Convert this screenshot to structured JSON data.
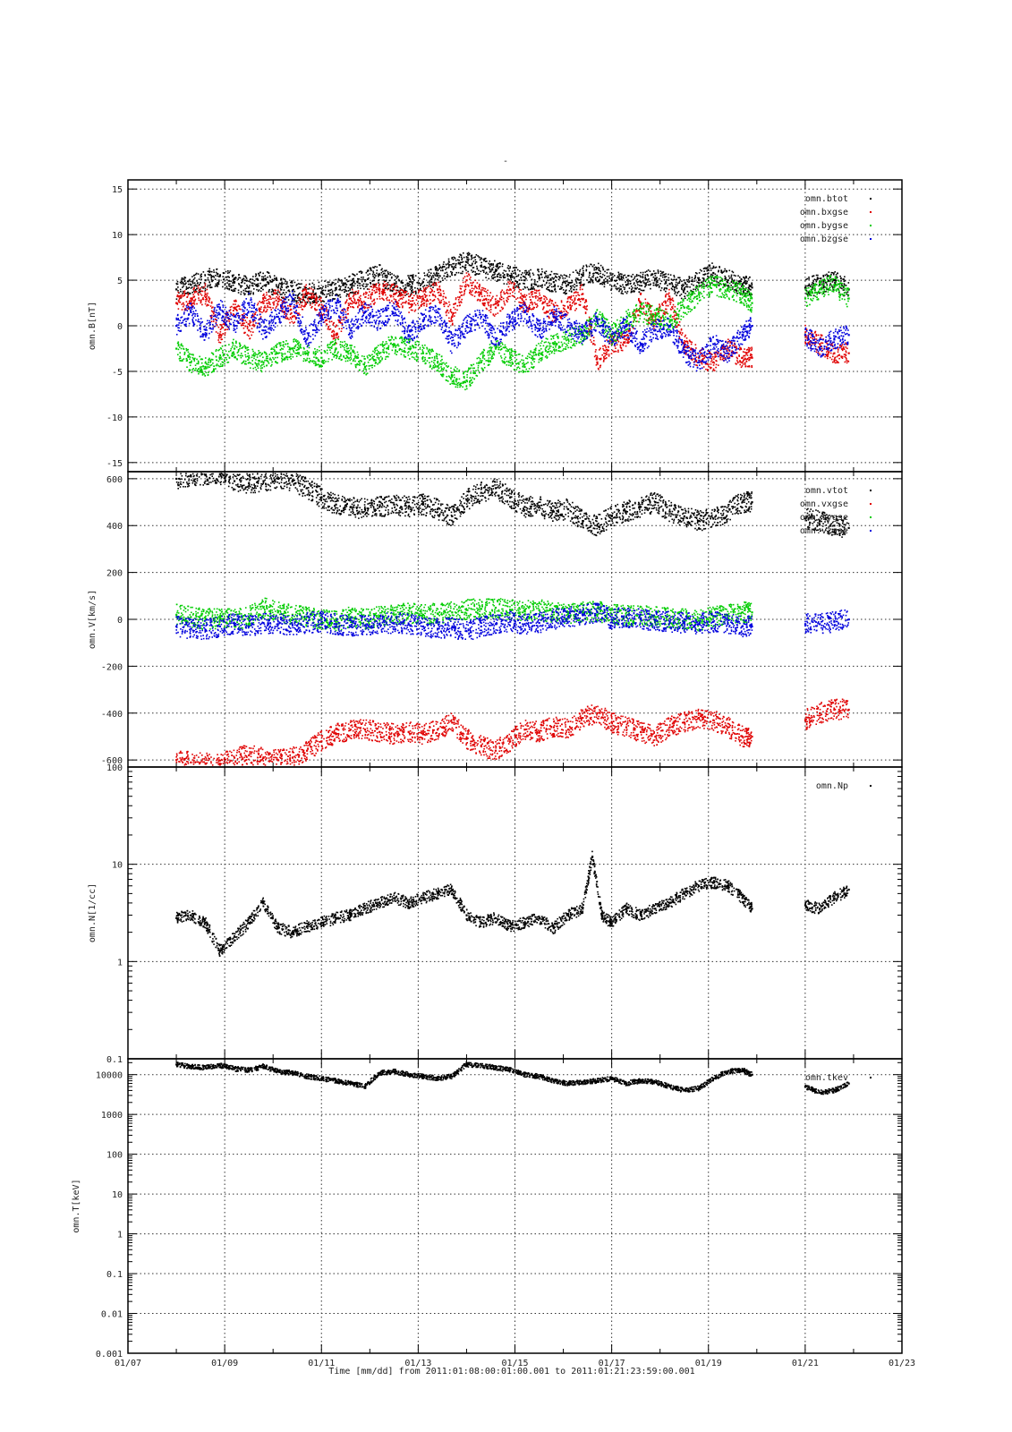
{
  "title": "-",
  "footer_label": "Time [mm/dd]  from 2011:01:08:00:01:00.001  to  2011:01:21:23:59:00.001",
  "chart_data": [
    {
      "type": "scatter",
      "ylabel": "omn.B[nT]",
      "yscale": "linear",
      "ylim": [
        -16,
        16
      ],
      "yticks": [
        -15,
        -10,
        -5,
        0,
        5,
        10,
        15
      ],
      "ytick_labels": [
        "-15",
        "-10",
        "-5",
        "0",
        "5",
        "10",
        "15"
      ],
      "xlim": [
        7,
        23
      ],
      "grid": true,
      "legend_position": "top-right",
      "series": [
        {
          "name": "omn.btot",
          "color": "#000000",
          "x": [
            8.0,
            8.3,
            8.6,
            8.9,
            9.2,
            9.5,
            9.8,
            10.1,
            10.4,
            10.7,
            11.0,
            11.3,
            11.6,
            11.9,
            12.2,
            12.5,
            12.8,
            13.1,
            13.4,
            13.7,
            14.0,
            14.3,
            14.6,
            14.9,
            15.2,
            15.5,
            15.8,
            16.1,
            16.4,
            16.7,
            17.0,
            17.3,
            17.6,
            17.9,
            18.2,
            18.5,
            18.8,
            19.1,
            19.4,
            19.7,
            19.9,
            21.0,
            21.3,
            21.6,
            21.9
          ],
          "y": [
            4.0,
            4.5,
            5.0,
            5.5,
            4.8,
            4.2,
            5.0,
            4.2,
            3.8,
            3.5,
            3.7,
            4.0,
            4.5,
            5.0,
            5.6,
            4.5,
            4.4,
            4.8,
            5.5,
            6.5,
            7.0,
            6.5,
            6.0,
            5.5,
            5.0,
            5.2,
            4.8,
            4.5,
            5.5,
            5.8,
            5.0,
            4.5,
            4.8,
            5.2,
            4.6,
            4.0,
            5.0,
            5.8,
            5.0,
            4.5,
            4.2,
            4.2,
            4.5,
            5.0,
            4.0
          ]
        },
        {
          "name": "omn.bxgse",
          "color": "#e00000",
          "x": [
            8.0,
            8.3,
            8.6,
            8.9,
            9.2,
            9.5,
            9.8,
            10.1,
            10.4,
            10.7,
            11.0,
            11.3,
            11.6,
            11.9,
            12.2,
            12.5,
            12.8,
            13.1,
            13.4,
            13.7,
            14.0,
            14.3,
            14.6,
            14.9,
            15.2,
            15.5,
            15.8,
            16.1,
            16.4,
            16.7,
            17.0,
            17.3,
            17.6,
            17.9,
            18.2,
            18.5,
            18.8,
            19.1,
            19.4,
            19.7,
            19.9,
            21.0,
            21.3,
            21.6,
            21.9
          ],
          "y": [
            2.5,
            3.0,
            3.5,
            -1.0,
            2.0,
            -0.5,
            2.5,
            3.0,
            1.0,
            3.5,
            2.0,
            -1.0,
            3.0,
            2.5,
            4.0,
            3.5,
            2.5,
            3.0,
            4.0,
            1.0,
            5.0,
            3.5,
            2.0,
            4.0,
            2.5,
            3.0,
            1.5,
            2.0,
            3.5,
            -4.0,
            -2.0,
            -1.5,
            2.5,
            0.5,
            3.0,
            -2.0,
            -3.5,
            -4.0,
            -2.5,
            -3.5,
            -3.5,
            -1.0,
            -2.0,
            -3.0,
            -3.0
          ]
        },
        {
          "name": "omn.bygse",
          "color": "#00cc00",
          "x": [
            8.0,
            8.3,
            8.6,
            8.9,
            9.2,
            9.5,
            9.8,
            10.1,
            10.4,
            10.7,
            11.0,
            11.3,
            11.6,
            11.9,
            12.2,
            12.5,
            12.8,
            13.1,
            13.4,
            13.7,
            14.0,
            14.3,
            14.6,
            14.9,
            15.2,
            15.5,
            15.8,
            16.1,
            16.4,
            16.7,
            17.0,
            17.3,
            17.6,
            17.9,
            18.2,
            18.5,
            18.8,
            19.1,
            19.4,
            19.7,
            19.9,
            21.0,
            21.3,
            21.6,
            21.9
          ],
          "y": [
            -2.5,
            -4.0,
            -4.5,
            -3.5,
            -2.5,
            -3.5,
            -4.0,
            -3.0,
            -2.5,
            -3.0,
            -3.5,
            -2.5,
            -3.0,
            -4.5,
            -3.0,
            -2.0,
            -2.5,
            -3.0,
            -4.0,
            -5.5,
            -6.0,
            -4.0,
            -2.5,
            -3.5,
            -4.5,
            -3.0,
            -2.0,
            -1.5,
            -1.0,
            1.0,
            -1.0,
            0.5,
            1.5,
            1.0,
            0.5,
            2.0,
            3.5,
            4.5,
            4.0,
            3.5,
            2.5,
            3.0,
            4.0,
            4.5,
            3.0
          ]
        },
        {
          "name": "omn.bzgse",
          "color": "#0000dd",
          "x": [
            8.0,
            8.3,
            8.6,
            8.9,
            9.2,
            9.5,
            9.8,
            10.1,
            10.4,
            10.7,
            11.0,
            11.3,
            11.6,
            11.9,
            12.2,
            12.5,
            12.8,
            13.1,
            13.4,
            13.7,
            14.0,
            14.3,
            14.6,
            14.9,
            15.2,
            15.5,
            15.8,
            16.1,
            16.4,
            16.7,
            17.0,
            17.3,
            17.6,
            17.9,
            18.2,
            18.5,
            18.8,
            19.1,
            19.4,
            19.7,
            19.9,
            21.0,
            21.3,
            21.6,
            21.9
          ],
          "y": [
            0.0,
            1.5,
            -1.0,
            2.0,
            0.0,
            2.5,
            -0.5,
            1.0,
            3.0,
            -1.5,
            1.0,
            2.5,
            -0.5,
            1.5,
            0.5,
            2.0,
            -1.0,
            0.5,
            1.5,
            -2.0,
            0.0,
            1.0,
            -1.5,
            0.5,
            1.5,
            -0.5,
            1.0,
            0.0,
            -1.0,
            0.5,
            -1.5,
            0.0,
            -2.0,
            -0.5,
            0.0,
            -3.0,
            -4.0,
            -2.0,
            -3.0,
            -1.0,
            0.0,
            -1.0,
            -2.5,
            -1.5,
            -1.0
          ]
        }
      ]
    },
    {
      "type": "scatter",
      "ylabel": "omn.V[km/s]",
      "yscale": "linear",
      "ylim": [
        -630,
        630
      ],
      "yticks": [
        -600,
        -400,
        -200,
        0,
        200,
        400,
        600
      ],
      "ytick_labels": [
        "-600",
        "-400",
        "-200",
        "0",
        "200",
        "400",
        "600"
      ],
      "xlim": [
        7,
        23
      ],
      "grid": true,
      "legend_position": "top-right",
      "series": [
        {
          "name": "omn.vtot",
          "color": "#000000",
          "x": [
            8.0,
            8.3,
            8.6,
            8.9,
            9.2,
            9.5,
            9.8,
            10.1,
            10.4,
            10.7,
            11.0,
            11.3,
            11.6,
            11.9,
            12.2,
            12.5,
            12.8,
            13.1,
            13.4,
            13.7,
            14.0,
            14.3,
            14.6,
            14.9,
            15.2,
            15.5,
            15.8,
            16.1,
            16.4,
            16.7,
            17.0,
            17.3,
            17.6,
            17.9,
            18.2,
            18.5,
            18.8,
            19.1,
            19.4,
            19.7,
            19.9,
            21.0,
            21.3,
            21.6,
            21.9
          ],
          "y": [
            600,
            610,
            615,
            620,
            590,
            580,
            590,
            600,
            590,
            560,
            520,
            490,
            480,
            470,
            480,
            490,
            480,
            490,
            470,
            440,
            510,
            540,
            560,
            520,
            480,
            480,
            460,
            470,
            420,
            400,
            440,
            460,
            480,
            500,
            460,
            440,
            420,
            430,
            460,
            500,
            500,
            430,
            420,
            400,
            390
          ]
        },
        {
          "name": "omn.vxgse",
          "color": "#e00000",
          "x": [
            8.0,
            8.3,
            8.6,
            8.9,
            9.2,
            9.5,
            9.8,
            10.1,
            10.4,
            10.7,
            11.0,
            11.3,
            11.6,
            11.9,
            12.2,
            12.5,
            12.8,
            13.1,
            13.4,
            13.7,
            14.0,
            14.3,
            14.6,
            14.9,
            15.2,
            15.5,
            15.8,
            16.1,
            16.4,
            16.7,
            17.0,
            17.3,
            17.6,
            17.9,
            18.2,
            18.5,
            18.8,
            19.1,
            19.4,
            19.7,
            19.9,
            21.0,
            21.3,
            21.6,
            21.9
          ],
          "y": [
            -600,
            -610,
            -615,
            -620,
            -590,
            -580,
            -590,
            -600,
            -590,
            -560,
            -520,
            -490,
            -470,
            -470,
            -480,
            -490,
            -480,
            -490,
            -470,
            -440,
            -510,
            -540,
            -560,
            -520,
            -470,
            -480,
            -460,
            -470,
            -420,
            -400,
            -440,
            -460,
            -480,
            -500,
            -460,
            -440,
            -420,
            -430,
            -460,
            -500,
            -500,
            -430,
            -400,
            -385,
            -385
          ]
        },
        {
          "name": "omn.vygse",
          "color": "#00cc00",
          "x": [
            8.0,
            8.3,
            8.6,
            8.9,
            9.2,
            9.5,
            9.8,
            10.1,
            10.4,
            10.7,
            11.0,
            11.3,
            11.6,
            11.9,
            12.2,
            12.5,
            12.8,
            13.1,
            13.4,
            13.7,
            14.0,
            14.3,
            14.6,
            14.9,
            15.2,
            15.5,
            15.8,
            16.1,
            16.4,
            16.7,
            17.0,
            17.3,
            17.6,
            17.9,
            18.2,
            18.5,
            18.8,
            19.1,
            19.4,
            19.7,
            19.9
          ],
          "y": [
            20,
            10,
            0,
            5,
            0,
            10,
            50,
            30,
            20,
            10,
            0,
            -10,
            10,
            0,
            15,
            20,
            25,
            20,
            25,
            30,
            40,
            45,
            50,
            40,
            35,
            40,
            30,
            25,
            30,
            35,
            20,
            15,
            20,
            10,
            5,
            0,
            -5,
            10,
            20,
            30,
            30
          ]
        },
        {
          "name": "omn.vzgse",
          "color": "#0000dd",
          "x": [
            8.0,
            8.3,
            8.6,
            8.9,
            9.2,
            9.5,
            9.8,
            10.1,
            10.4,
            10.7,
            11.0,
            11.3,
            11.6,
            11.9,
            12.2,
            12.5,
            12.8,
            13.1,
            13.4,
            13.7,
            14.0,
            14.3,
            14.6,
            14.9,
            15.2,
            15.5,
            15.8,
            16.1,
            16.4,
            16.7,
            17.0,
            17.3,
            17.6,
            17.9,
            18.2,
            18.5,
            18.8,
            19.1,
            19.4,
            19.7,
            19.9,
            21.0,
            21.3,
            21.6,
            21.9
          ],
          "y": [
            -30,
            -40,
            -45,
            -30,
            -20,
            -30,
            -15,
            -20,
            -25,
            -15,
            -10,
            -20,
            -30,
            -25,
            -20,
            -15,
            -20,
            -30,
            -40,
            -35,
            -50,
            -30,
            -20,
            -10,
            -20,
            -15,
            0,
            10,
            20,
            30,
            0,
            10,
            0,
            -5,
            -10,
            -15,
            -20,
            -10,
            -20,
            -30,
            -30,
            -20,
            -20,
            -10,
            0
          ]
        }
      ]
    },
    {
      "type": "scatter",
      "ylabel": "omn.N[1/cc]",
      "yscale": "log",
      "ylim": [
        0.1,
        100
      ],
      "yticks": [
        0.1,
        1,
        10,
        100
      ],
      "ytick_labels": [
        "0.1",
        "1",
        "10",
        "100"
      ],
      "xlim": [
        7,
        23
      ],
      "grid": true,
      "legend_position": "top-right",
      "series": [
        {
          "name": "omn.Np",
          "color": "#000000",
          "x": [
            8.0,
            8.3,
            8.6,
            8.9,
            9.2,
            9.5,
            9.8,
            10.1,
            10.4,
            10.7,
            11.0,
            11.3,
            11.6,
            11.9,
            12.2,
            12.5,
            12.8,
            13.1,
            13.4,
            13.7,
            14.0,
            14.3,
            14.6,
            14.9,
            15.2,
            15.5,
            15.8,
            16.1,
            16.4,
            16.6,
            16.8,
            17.0,
            17.3,
            17.6,
            17.9,
            18.2,
            18.5,
            18.8,
            19.1,
            19.4,
            19.7,
            19.9,
            21.0,
            21.3,
            21.6,
            21.9
          ],
          "y": [
            2.8,
            3.0,
            2.5,
            1.3,
            1.8,
            2.5,
            4.0,
            2.2,
            2.0,
            2.3,
            2.5,
            2.8,
            3.0,
            3.5,
            4.0,
            4.5,
            4.0,
            4.5,
            5.0,
            5.5,
            3.0,
            2.5,
            2.8,
            2.3,
            2.5,
            2.8,
            2.2,
            3.0,
            3.5,
            12.0,
            3.0,
            2.5,
            3.5,
            3.0,
            3.5,
            4.0,
            5.0,
            6.0,
            6.5,
            6.0,
            4.5,
            3.5,
            3.8,
            3.5,
            4.5,
            5.5
          ]
        }
      ]
    },
    {
      "type": "scatter",
      "ylabel": "omn.T[keV]",
      "yscale": "log",
      "ylim": [
        0.001,
        25000
      ],
      "yticks": [
        0.001,
        0.01,
        0.1,
        1,
        10,
        100,
        1000,
        10000
      ],
      "ytick_labels": [
        "0.001",
        "0.01",
        "0.1",
        "1",
        "10",
        "100",
        "1000",
        "10000"
      ],
      "xlim": [
        7,
        23
      ],
      "grid": true,
      "legend_position": "top-right",
      "series": [
        {
          "name": "omn.tkev",
          "color": "#000000",
          "x": [
            8.0,
            8.3,
            8.6,
            8.9,
            9.2,
            9.5,
            9.8,
            10.1,
            10.4,
            10.7,
            11.0,
            11.3,
            11.6,
            11.9,
            12.2,
            12.5,
            12.8,
            13.1,
            13.4,
            13.7,
            14.0,
            14.3,
            14.6,
            14.9,
            15.2,
            15.5,
            15.8,
            16.1,
            16.4,
            16.7,
            17.0,
            17.3,
            17.6,
            17.9,
            18.2,
            18.5,
            18.8,
            19.1,
            19.4,
            19.7,
            19.9,
            21.0,
            21.3,
            21.6,
            21.9
          ],
          "y": [
            18000,
            16000,
            15000,
            17000,
            14000,
            13000,
            16000,
            12000,
            11000,
            9000,
            8000,
            7000,
            6000,
            5000,
            11000,
            12000,
            10000,
            9000,
            8000,
            9000,
            18000,
            17000,
            15000,
            13000,
            10000,
            9000,
            7000,
            6000,
            6500,
            7000,
            8000,
            6000,
            7000,
            6500,
            5000,
            4000,
            4500,
            8000,
            12000,
            13000,
            10000,
            5000,
            3500,
            4000,
            6000
          ]
        }
      ]
    }
  ],
  "x_axis": {
    "ticks": [
      7,
      9,
      11,
      13,
      15,
      17,
      19,
      21,
      23
    ],
    "tick_labels": [
      "01/07",
      "01/09",
      "01/11",
      "01/13",
      "01/15",
      "01/17",
      "01/19",
      "01/21",
      "01/23"
    ]
  }
}
